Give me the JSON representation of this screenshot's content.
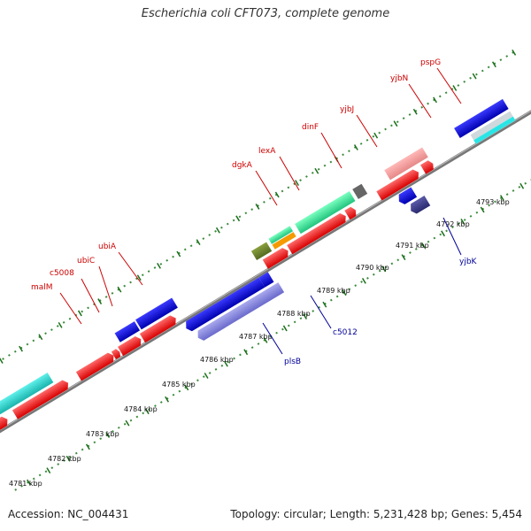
{
  "title": "Escherichia coli CFT073, complete genome",
  "footer": {
    "accession": "Accession: NC_004431",
    "stats": "Topology: circular; Length: 5,231,428 bp; Genes: 5,454"
  },
  "colors": {
    "forward": "#ff0000",
    "backbone": "#888888",
    "label_top": "#cc0000",
    "label_bottom": "#000099",
    "tick_dot": "#3a8a3a",
    "tick_mark": "#1a6e1a"
  },
  "scale_labels": [
    "4781 kbp",
    "4782 kbp",
    "4783 kbp",
    "4784 kbp",
    "4785 kbp",
    "4786 kbp",
    "4787 kbp",
    "4788 kbp",
    "4789 kbp",
    "4790 kbp",
    "4791 kbp",
    "4792 kbp",
    "4793 kbp"
  ],
  "top_gene_labels": [
    "malM",
    "c5008",
    "ubiC",
    "ubiA",
    "dgkA",
    "lexA",
    "dinF",
    "yjbJ",
    "yjbN",
    "pspG"
  ],
  "bottom_gene_labels": [
    "plsB",
    "c5012",
    "yjbK"
  ]
}
